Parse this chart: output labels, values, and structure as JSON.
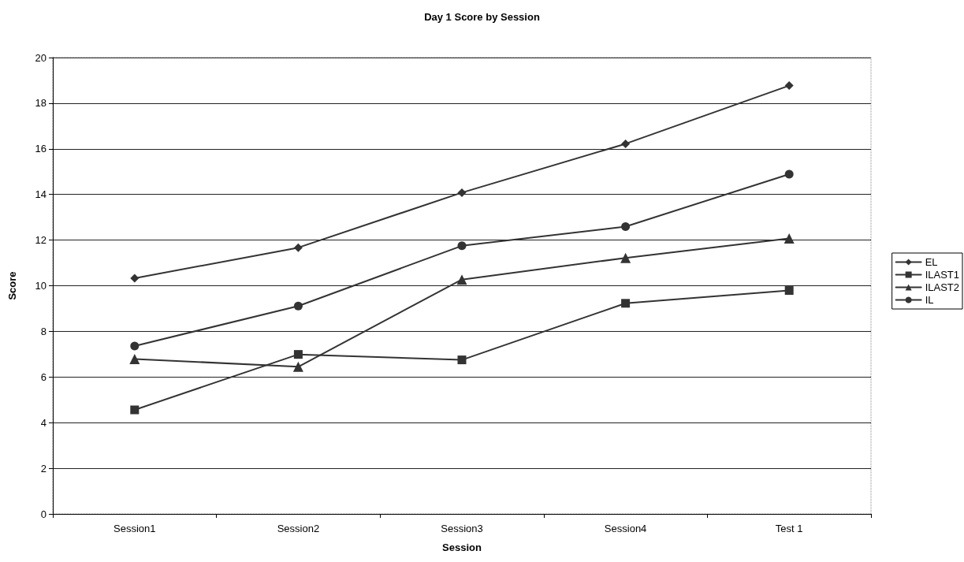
{
  "chart_data": {
    "type": "line",
    "title": "Day 1 Score by Session",
    "xlabel": "Session",
    "ylabel": "Score",
    "categories": [
      "Session1",
      "Session2",
      "Session3",
      "Session4",
      "Test 1"
    ],
    "series": [
      {
        "name": "EL",
        "color": "#333333",
        "marker": "diamond",
        "values": [
          10.33,
          11.67,
          14.08,
          16.22,
          18.77
        ]
      },
      {
        "name": "ILAST1",
        "color": "#333333",
        "marker": "square",
        "values": [
          4.56,
          6.99,
          6.75,
          9.23,
          9.79
        ]
      },
      {
        "name": "ILAST2",
        "color": "#333333",
        "marker": "triangle",
        "values": [
          6.79,
          6.45,
          10.27,
          11.22,
          12.07
        ]
      },
      {
        "name": "IL",
        "color": "#333333",
        "marker": "circle",
        "values": [
          7.36,
          9.11,
          11.75,
          12.59,
          14.89
        ]
      }
    ],
    "ylim": [
      0,
      20
    ],
    "yticks": [
      0,
      2,
      4,
      6,
      8,
      10,
      12,
      14,
      16,
      18,
      20
    ],
    "grid": "y",
    "legend": "right",
    "line_style": "solid"
  }
}
